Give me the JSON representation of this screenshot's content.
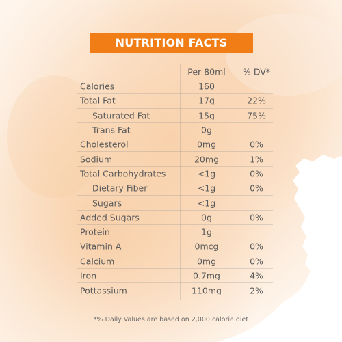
{
  "title": "NUTRITION FACTS",
  "headers": {
    "name": "",
    "amount": "Per 80ml",
    "dv": "% DV*"
  },
  "rows": [
    {
      "name": "Calories",
      "amount": "160",
      "dv": "",
      "indent": false
    },
    {
      "name": "Total Fat",
      "amount": "17g",
      "dv": "22%",
      "indent": false
    },
    {
      "name": "Saturated Fat",
      "amount": "15g",
      "dv": "75%",
      "indent": true
    },
    {
      "name": "Trans Fat",
      "amount": "0g",
      "dv": "",
      "indent": true
    },
    {
      "name": "Cholesterol",
      "amount": "0mg",
      "dv": "0%",
      "indent": false
    },
    {
      "name": "Sodium",
      "amount": "20mg",
      "dv": "1%",
      "indent": false
    },
    {
      "name": "Total Carbohydrates",
      "amount": "<1g",
      "dv": "0%",
      "indent": false
    },
    {
      "name": "Dietary Fiber",
      "amount": "<1g",
      "dv": "0%",
      "indent": true
    },
    {
      "name": "Sugars",
      "amount": "<1g",
      "dv": "",
      "indent": true
    },
    {
      "name": "Added Sugars",
      "amount": "0g",
      "dv": "0%",
      "indent": false
    },
    {
      "name": "Protein",
      "amount": "1g",
      "dv": "",
      "indent": false
    },
    {
      "name": "Vitamin A",
      "amount": "0mcg",
      "dv": "0%",
      "indent": false
    },
    {
      "name": "Calcium",
      "amount": "0mg",
      "dv": "0%",
      "indent": false
    },
    {
      "name": "Iron",
      "amount": "0.7mg",
      "dv": "4%",
      "indent": false
    },
    {
      "name": "Pottassium",
      "amount": "110mg",
      "dv": "2%",
      "indent": false
    }
  ],
  "footnote": "*% Daily Values are based on 2,000 calorie diet",
  "colors": {
    "banner": "#f07d16",
    "banner_text": "#ffffff",
    "wash": "#f9d7b4",
    "text": "#5a5a5a"
  }
}
